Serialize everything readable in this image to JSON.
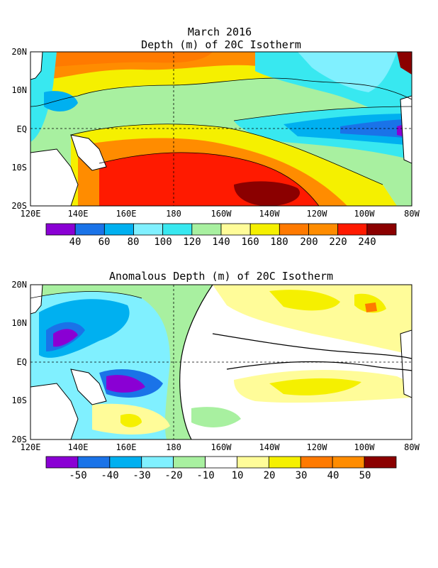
{
  "figure": {
    "month_title": "March 2016",
    "top": {
      "title": "Depth (m) of 20C Isotherm",
      "lat_ticks": [
        "20N",
        "10N",
        "EQ",
        "10S",
        "20S"
      ],
      "lon_ticks": [
        "120E",
        "140E",
        "160E",
        "180",
        "160W",
        "140W",
        "120W",
        "100W",
        "80W"
      ],
      "colorbar": {
        "labels": [
          "40",
          "60",
          "80",
          "100",
          "120",
          "140",
          "160",
          "180",
          "200",
          "220",
          "240"
        ],
        "colors": [
          "#8a00d4",
          "#1a73e8",
          "#00b0f0",
          "#80f0ff",
          "#38e8f0",
          "#a8f0a0",
          "#fffc99",
          "#f5f000",
          "#ff7a00",
          "#ff8c00",
          "#ff1a00",
          "#8b0000"
        ]
      }
    },
    "bottom": {
      "title": "Anomalous Depth (m) of 20C Isotherm",
      "lat_ticks": [
        "20N",
        "10N",
        "EQ",
        "10S",
        "20S"
      ],
      "lon_ticks": [
        "120E",
        "140E",
        "160E",
        "180",
        "160W",
        "140W",
        "120W",
        "100W",
        "80W"
      ],
      "colorbar": {
        "labels": [
          "-50",
          "-40",
          "-30",
          "-20",
          "-10",
          "10",
          "20",
          "30",
          "40",
          "50"
        ],
        "colors": [
          "#8a00d4",
          "#1a73e8",
          "#00b0f0",
          "#80f0ff",
          "#a8f0a0",
          "#ffffff",
          "#fffc99",
          "#f5f000",
          "#ff7a00",
          "#ff8c00",
          "#8b0000"
        ]
      }
    }
  }
}
